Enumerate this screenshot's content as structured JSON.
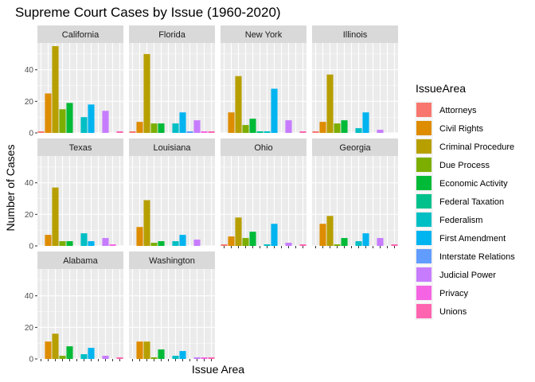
{
  "chart_data": {
    "type": "bar",
    "title": "Supreme Court Cases by Issue (1960-2020)",
    "xlabel": "Issue Area",
    "ylabel": "Number of Cases",
    "ylim": [
      0,
      57
    ],
    "yticks": [
      0,
      20,
      40
    ],
    "grid": true,
    "legend_position": "right",
    "legend_title": "IssueArea",
    "categories": [
      "Attorneys",
      "Civil Rights",
      "Criminal Procedure",
      "Due Process",
      "Economic Activity",
      "Federal Taxation",
      "Federalism",
      "First Amendment",
      "Interstate Relations",
      "Judicial Power",
      "Privacy",
      "Unions"
    ],
    "colors": [
      "#F8766D",
      "#DE8C00",
      "#B79F00",
      "#7CAE00",
      "#00BA38",
      "#00C08B",
      "#00BFC4",
      "#00B4F0",
      "#619CFF",
      "#C77CFF",
      "#F564E3",
      "#FF64B0"
    ],
    "facets": [
      {
        "name": "California",
        "values": [
          1,
          25,
          55,
          15,
          19,
          0,
          10,
          18,
          0,
          14,
          0,
          1
        ]
      },
      {
        "name": "Florida",
        "values": [
          1,
          7,
          50,
          6,
          6,
          0,
          6,
          13,
          1,
          8,
          1,
          1
        ]
      },
      {
        "name": "New York",
        "values": [
          0,
          13,
          36,
          5,
          9,
          1,
          1,
          28,
          0,
          8,
          0,
          1
        ]
      },
      {
        "name": "Illinois",
        "values": [
          1,
          7,
          37,
          6,
          8,
          0,
          3,
          13,
          0,
          2,
          0,
          0
        ]
      },
      {
        "name": "Texas",
        "values": [
          0,
          7,
          37,
          3,
          3,
          0,
          8,
          3,
          0,
          5,
          1,
          0
        ]
      },
      {
        "name": "Louisiana",
        "values": [
          0,
          12,
          29,
          2,
          3,
          0,
          3,
          7,
          0,
          4,
          0,
          0
        ]
      },
      {
        "name": "Ohio",
        "values": [
          1,
          6,
          18,
          5,
          9,
          0,
          1,
          14,
          0,
          2,
          0,
          1
        ]
      },
      {
        "name": "Georgia",
        "values": [
          0,
          14,
          19,
          1,
          5,
          0,
          3,
          8,
          0,
          5,
          0,
          1
        ]
      },
      {
        "name": "Alabama",
        "values": [
          0,
          11,
          16,
          2,
          8,
          0,
          3,
          7,
          0,
          2,
          0,
          1
        ]
      },
      {
        "name": "Washington",
        "values": [
          0,
          11,
          11,
          1,
          6,
          0,
          2,
          5,
          0,
          1,
          1,
          1
        ]
      }
    ]
  }
}
